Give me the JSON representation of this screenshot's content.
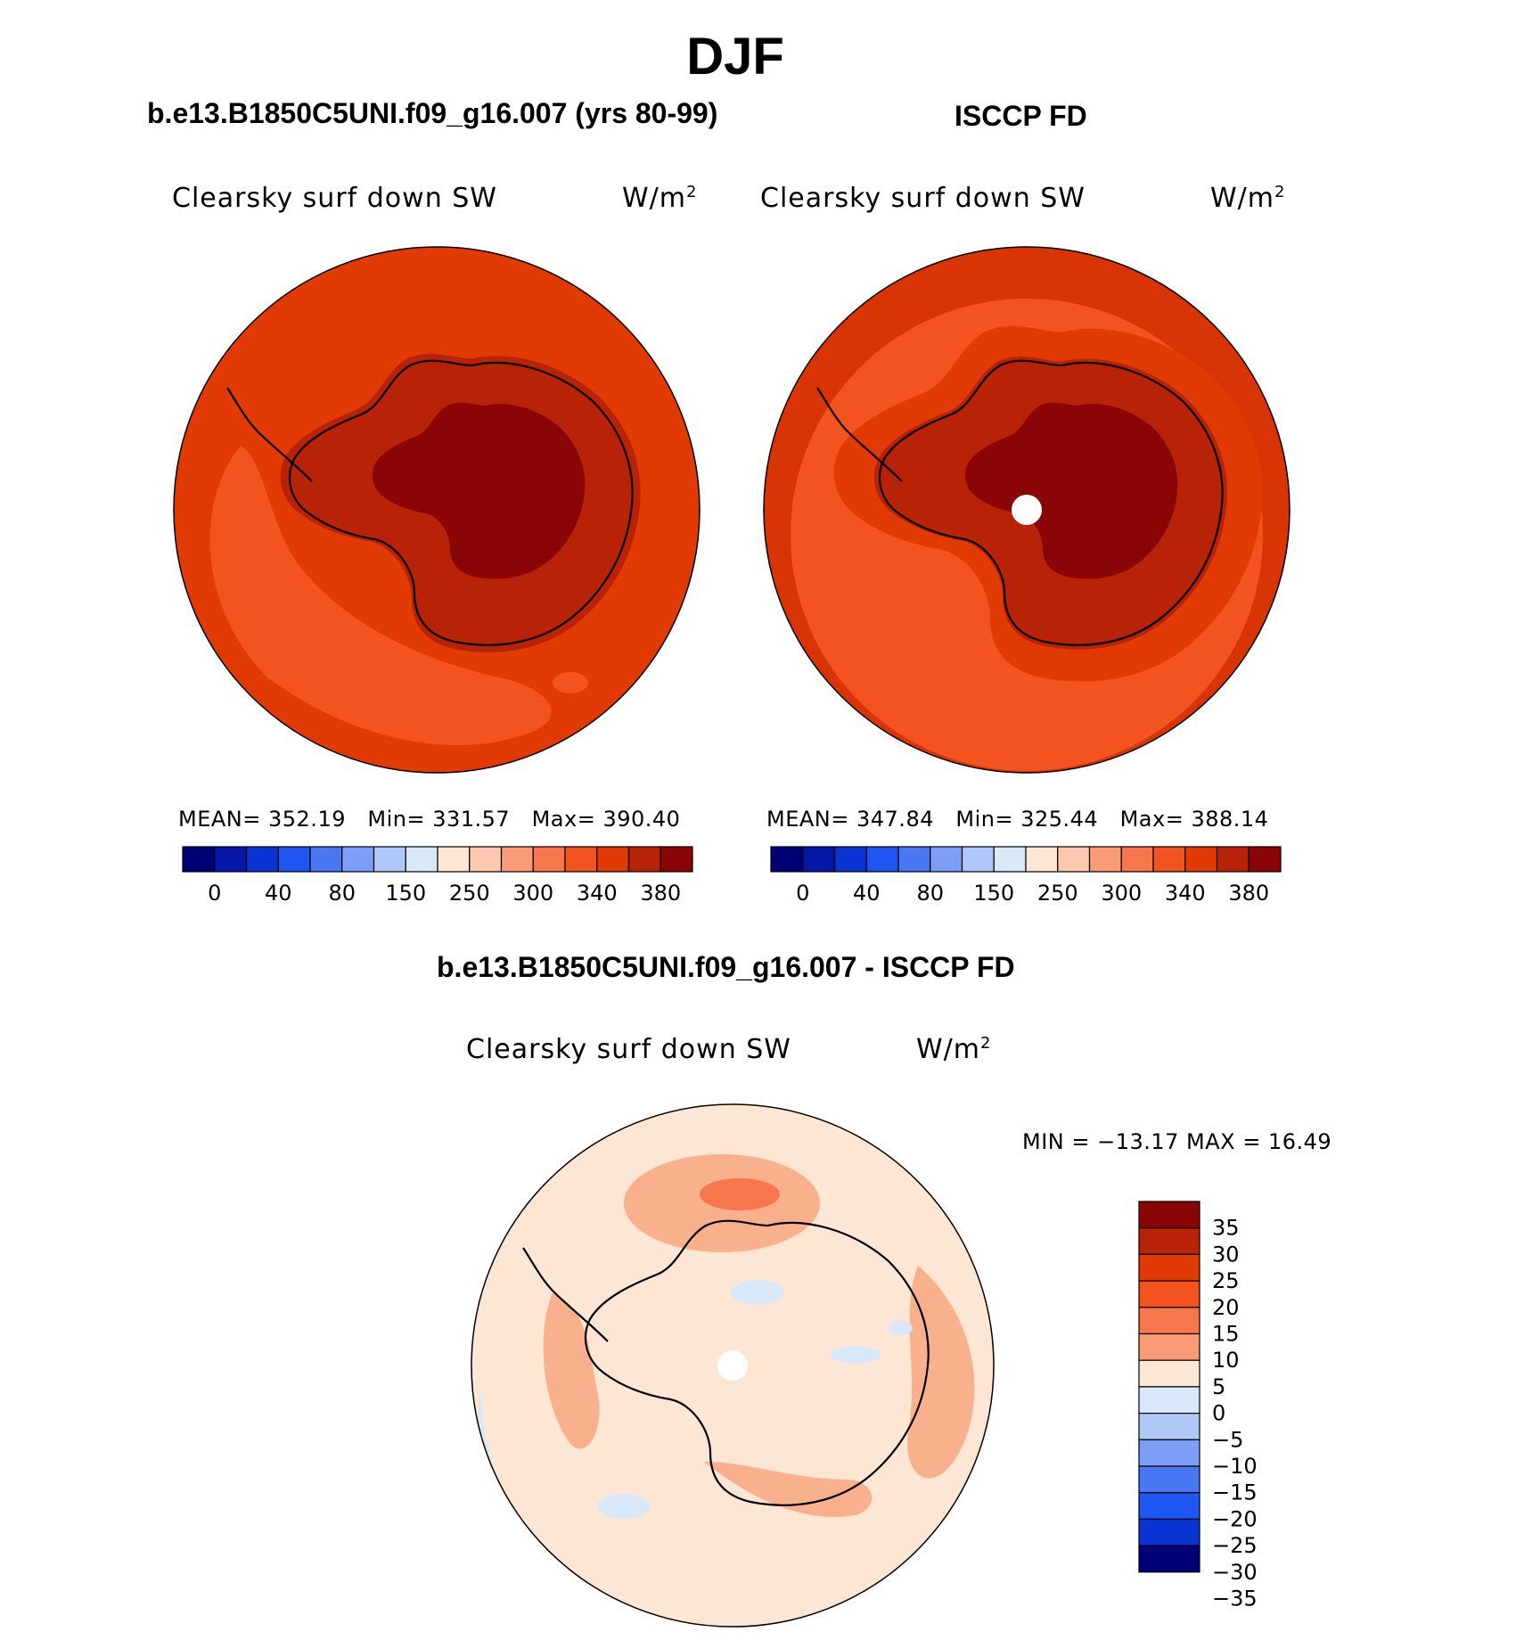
{
  "page": {
    "title": "DJF"
  },
  "panels": {
    "model": {
      "title": "b.e13.B1850C5UNI.f09_g16.007 (yrs 80-99)",
      "variable": "Clearsky surf down SW",
      "units": "W/m",
      "units_exp": "2",
      "stats": {
        "mean_label": "MEAN=",
        "mean": "352.19",
        "min_label": "Min=",
        "min": "331.57",
        "max_label": "Max=",
        "max": "390.40"
      }
    },
    "obs": {
      "title": "ISCCP FD",
      "variable": "Clearsky surf down SW",
      "units": "W/m",
      "units_exp": "2",
      "stats": {
        "mean_label": "MEAN=",
        "mean": "347.84",
        "min_label": "Min=",
        "min": "325.44",
        "max_label": "Max=",
        "max": "388.14"
      }
    },
    "diff": {
      "title": "b.e13.B1850C5UNI.f09_g16.007 - ISCCP FD",
      "variable": "Clearsky surf down SW",
      "units": "W/m",
      "units_exp": "2",
      "minmax": "MIN = −13.17 MAX =   16.49"
    }
  },
  "colorbar_top": {
    "colors": [
      "#000076",
      "#0417a8",
      "#0a33d4",
      "#1f55f2",
      "#4a78f4",
      "#7d9ef6",
      "#b0c8f7",
      "#d8e8f8",
      "#fde7d4",
      "#fcc8ae",
      "#f99b77",
      "#f7764d",
      "#f2531f",
      "#e13a05",
      "#b82206",
      "#8a0606"
    ],
    "labels": [
      "0",
      "40",
      "80",
      "150",
      "250",
      "300",
      "340",
      "380"
    ]
  },
  "colorbar_diff": {
    "colors": [
      "#8a0606",
      "#b82206",
      "#e13a05",
      "#f2531f",
      "#f7764d",
      "#f99b77",
      "#fde7d4",
      "#d8e8f8",
      "#b0c8f7",
      "#7d9ef6",
      "#4a78f4",
      "#1f55f2",
      "#0a33d4",
      "#000076"
    ],
    "labels": [
      "35",
      "30",
      "25",
      "20",
      "15",
      "10",
      "5",
      "0",
      "−5",
      "−10",
      "−15",
      "−20",
      "−25",
      "−30",
      "−35"
    ]
  },
  "map_colors": {
    "outer_model": "#e23a05",
    "band_model": "#f2531f",
    "plateau_mid": "#b82206",
    "plateau_core": "#8a0606",
    "outer_obs": "#d83405",
    "band_obs": "#f2531f",
    "diff_base": "#fde7d4",
    "diff_pos": "#f9b08c",
    "diff_pos_strong": "#f7764d",
    "diff_neg": "#d8e8f8",
    "pole_hole": "#ffffff",
    "coast": "#000000"
  }
}
